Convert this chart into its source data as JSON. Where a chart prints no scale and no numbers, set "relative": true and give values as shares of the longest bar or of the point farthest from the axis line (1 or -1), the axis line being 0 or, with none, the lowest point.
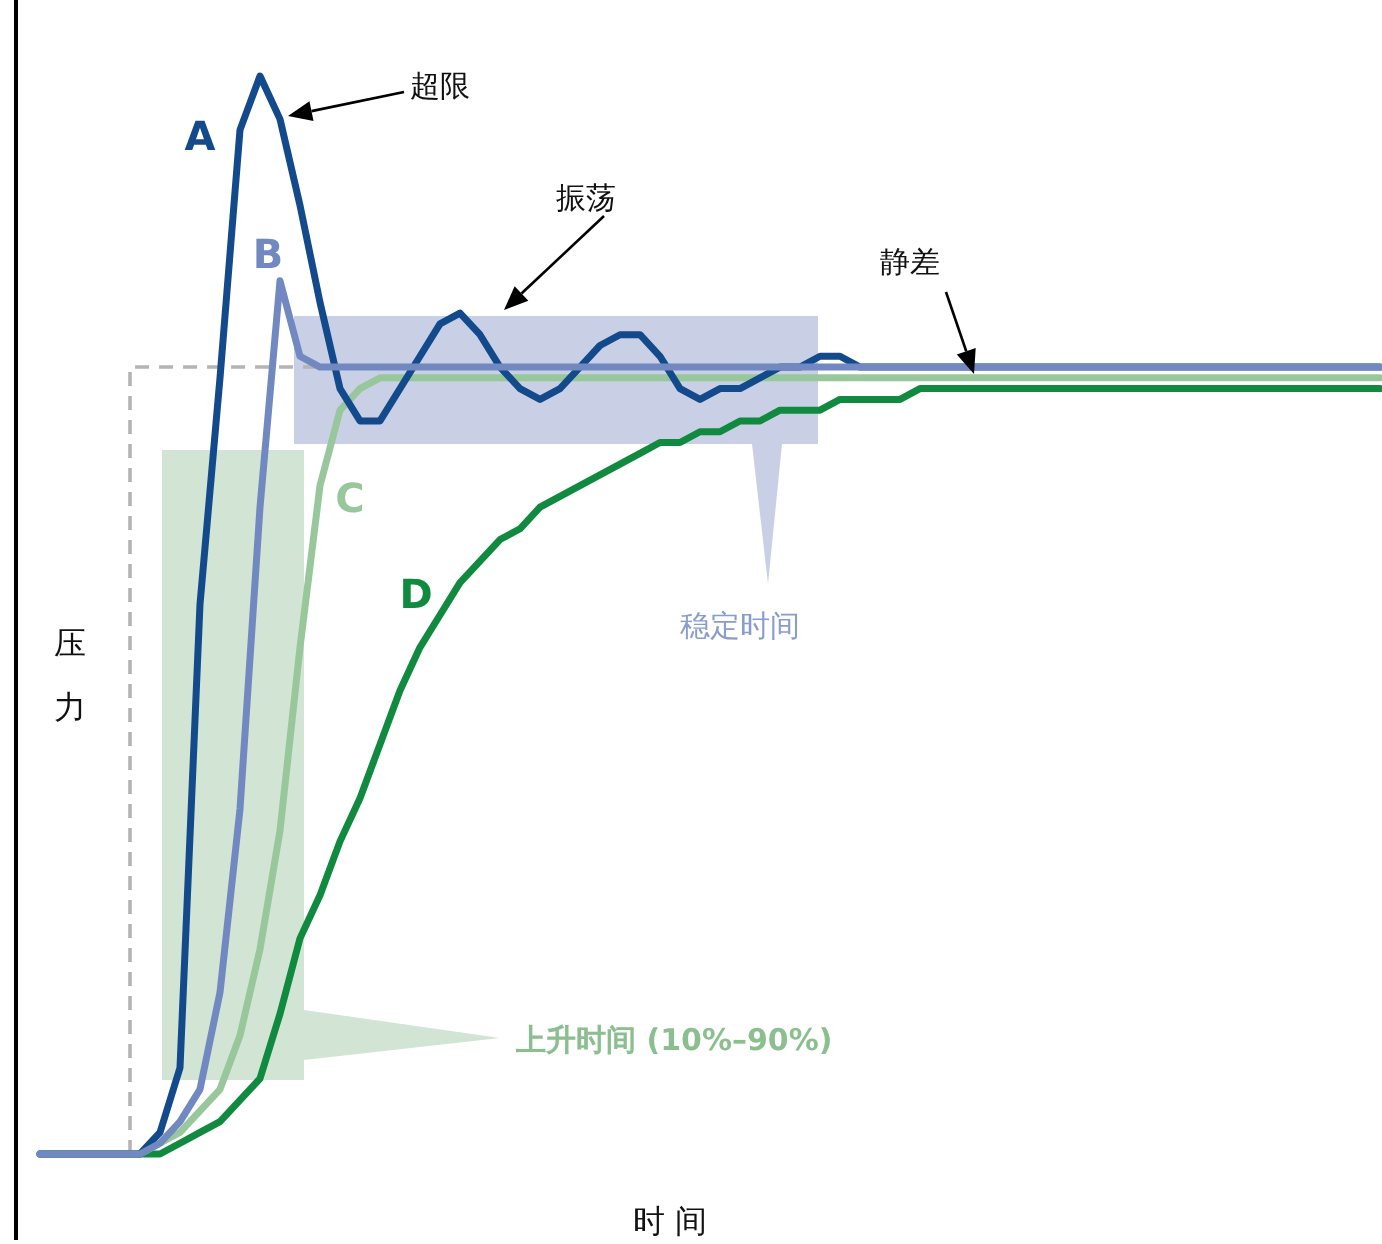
{
  "chart_data": {
    "type": "line",
    "relative": true,
    "xlabel": "时 间",
    "ylabel": "压力",
    "marker": "none",
    "categories": [
      null,
      null,
      null,
      null,
      null,
      null,
      null,
      null,
      null,
      null,
      null,
      null,
      null,
      null,
      null,
      null,
      null,
      null,
      null,
      null,
      null,
      null,
      null,
      null,
      null,
      null,
      null,
      null,
      null,
      null,
      null,
      null,
      null,
      null,
      null,
      null,
      null,
      null,
      null,
      null,
      null,
      null,
      null,
      null,
      null,
      null,
      null,
      null,
      null,
      null,
      null,
      null,
      null,
      null,
      null,
      null,
      null,
      null,
      null,
      null,
      null,
      null,
      null,
      null,
      null,
      null,
      null,
      null
    ],
    "series": [
      {
        "name": "A",
        "color": "#134a8c",
        "values": [
          0,
          0,
          0,
          0,
          0,
          0,
          0.02,
          0.08,
          0.51,
          0.72,
          0.95,
          1.0,
          0.96,
          0.88,
          0.79,
          0.71,
          0.68,
          0.68,
          0.71,
          0.74,
          0.77,
          0.78,
          0.76,
          0.73,
          0.71,
          0.7,
          0.71,
          0.73,
          0.75,
          0.76,
          0.76,
          0.74,
          0.71,
          0.7,
          0.71,
          0.71,
          0.72,
          0.73,
          0.73,
          0.74,
          0.74,
          0.73,
          0.73,
          0.73,
          0.73,
          0.73,
          0.73,
          0.73,
          0.73,
          0.73,
          0.73,
          0.73,
          0.73,
          0.73,
          0.73,
          0.73,
          0.73,
          0.73,
          0.73,
          0.73,
          0.73,
          0.73,
          0.73,
          0.73,
          0.73,
          0.73,
          0.73,
          0.73
        ]
      },
      {
        "name": "B",
        "color": "#7189c0",
        "values": [
          0,
          0,
          0,
          0,
          0,
          0,
          0.01,
          0.03,
          0.06,
          0.15,
          0.32,
          0.6,
          0.81,
          0.74,
          0.73,
          0.73,
          0.73,
          0.73,
          0.73,
          0.73,
          0.73,
          0.73,
          0.73,
          0.73,
          0.73,
          0.73,
          0.73,
          0.73,
          0.73,
          0.73,
          0.73,
          0.73,
          0.73,
          0.73,
          0.73,
          0.73,
          0.73,
          0.73,
          0.73,
          0.73,
          0.73,
          0.73,
          0.73,
          0.73,
          0.73,
          0.73,
          0.73,
          0.73,
          0.73,
          0.73,
          0.73,
          0.73,
          0.73,
          0.73,
          0.73,
          0.73,
          0.73,
          0.73,
          0.73,
          0.73,
          0.73,
          0.73,
          0.73,
          0.73,
          0.73,
          0.73,
          0.73,
          0.73
        ]
      },
      {
        "name": "C",
        "color": "#99c79c",
        "values": [
          0,
          0,
          0,
          0,
          0,
          0,
          0.01,
          0.02,
          0.04,
          0.06,
          0.11,
          0.19,
          0.3,
          0.47,
          0.62,
          0.69,
          0.71,
          0.72,
          0.72,
          0.72,
          0.72,
          0.72,
          0.72,
          0.72,
          0.72,
          0.72,
          0.72,
          0.72,
          0.72,
          0.72,
          0.72,
          0.72,
          0.72,
          0.72,
          0.72,
          0.72,
          0.72,
          0.72,
          0.72,
          0.72,
          0.72,
          0.72,
          0.72,
          0.72,
          0.72,
          0.72,
          0.72,
          0.72,
          0.72,
          0.72,
          0.72,
          0.72,
          0.72,
          0.72,
          0.72,
          0.72,
          0.72,
          0.72,
          0.72,
          0.72,
          0.72,
          0.72,
          0.72,
          0.72,
          0.72,
          0.72,
          0.72,
          0.72
        ]
      },
      {
        "name": "D",
        "color": "#108a3f",
        "values": [
          0,
          0,
          0,
          0,
          0,
          0,
          0,
          0.01,
          0.02,
          0.03,
          0.05,
          0.07,
          0.13,
          0.2,
          0.24,
          0.29,
          0.33,
          0.38,
          0.43,
          0.47,
          0.5,
          0.53,
          0.55,
          0.57,
          0.58,
          0.6,
          0.61,
          0.62,
          0.63,
          0.64,
          0.65,
          0.66,
          0.66,
          0.67,
          0.67,
          0.68,
          0.68,
          0.69,
          0.69,
          0.69,
          0.7,
          0.7,
          0.7,
          0.7,
          0.71,
          0.71,
          0.71,
          0.71,
          0.71,
          0.71,
          0.71,
          0.71,
          0.71,
          0.71,
          0.71,
          0.71,
          0.71,
          0.71,
          0.71,
          0.71,
          0.71,
          0.71,
          0.71,
          0.71,
          0.71,
          0.71,
          0.71,
          0.71
        ]
      }
    ],
    "ref_lines": [
      {
        "axis": "y",
        "value": 0.73,
        "color": "#b4b4b4",
        "line_style": "dashed"
      }
    ],
    "annotations": [
      "超限",
      "振荡",
      "静差",
      "上升时间 (10%–90%)",
      "稳定时间"
    ]
  }
}
